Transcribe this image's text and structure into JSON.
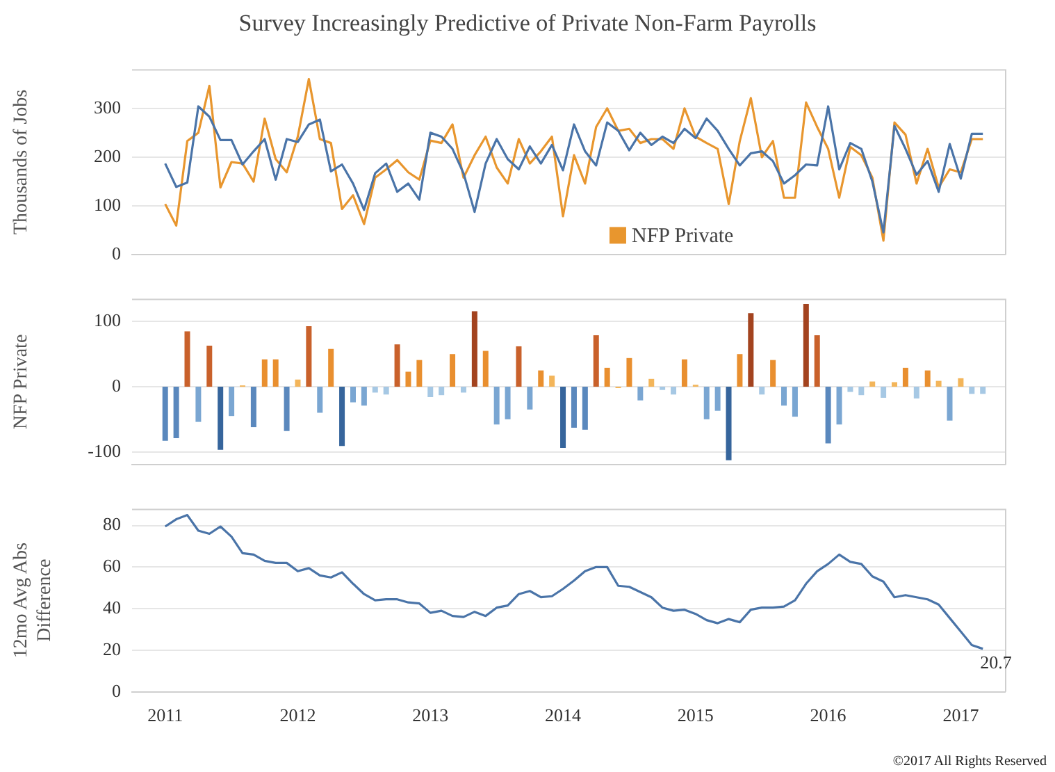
{
  "chart_data": [
    {
      "type": "line",
      "title": "Survey Increasingly Predictive of Private Non-Farm Payrolls",
      "ylabel": "Thousands of Jobs",
      "legend": "bottom",
      "grid": "y",
      "marker": "none",
      "tick_labels": "y",
      "x": [
        "2011-01",
        "2011-02",
        "2011-03",
        "2011-04",
        "2011-05",
        "2011-06",
        "2011-07",
        "2011-08",
        "2011-09",
        "2011-10",
        "2011-11",
        "2011-12",
        "2012-01",
        "2012-02",
        "2012-03",
        "2012-04",
        "2012-05",
        "2012-06",
        "2012-07",
        "2012-08",
        "2012-09",
        "2012-10",
        "2012-11",
        "2012-12",
        "2013-01",
        "2013-02",
        "2013-03",
        "2013-04",
        "2013-05",
        "2013-06",
        "2013-07",
        "2013-08",
        "2013-09",
        "2013-10",
        "2013-11",
        "2013-12",
        "2014-01",
        "2014-02",
        "2014-03",
        "2014-04",
        "2014-05",
        "2014-06",
        "2014-07",
        "2014-08",
        "2014-09",
        "2014-10",
        "2014-11",
        "2014-12",
        "2015-01",
        "2015-02",
        "2015-03",
        "2015-04",
        "2015-05",
        "2015-06",
        "2015-07",
        "2015-08",
        "2015-09",
        "2015-10",
        "2015-11",
        "2015-12",
        "2016-01",
        "2016-02",
        "2016-03",
        "2016-04",
        "2016-05",
        "2016-06",
        "2016-07",
        "2016-08",
        "2016-09",
        "2016-10",
        "2016-11",
        "2016-12",
        "2017-01",
        "2017-02",
        "2017-03"
      ],
      "xlim": [
        "2010-10",
        "2017-05"
      ],
      "xticks": [
        "2011",
        "2012",
        "2013",
        "2014",
        "2015",
        "2016",
        "2017"
      ],
      "ylim": [
        0,
        380
      ],
      "yticks": [
        0,
        100,
        200,
        300
      ],
      "series": [
        {
          "color": "#4a74a8",
          "values": [
            187,
            139,
            148,
            304,
            283,
            235,
            235,
            185,
            212,
            237,
            154,
            237,
            231,
            267,
            277,
            171,
            185,
            146,
            92,
            167,
            187,
            129,
            146,
            113,
            250,
            242,
            217,
            167,
            88,
            187,
            237,
            196,
            175,
            222,
            187,
            225,
            173,
            267,
            212,
            183,
            271,
            254,
            214,
            250,
            225,
            242,
            229,
            258,
            239,
            279,
            254,
            217,
            183,
            208,
            212,
            192,
            146,
            163,
            185,
            183,
            304,
            175,
            229,
            217,
            150,
            46,
            264,
            217,
            164,
            192,
            129,
            227,
            156,
            248,
            248
          ]
        },
        {
          "name": "NFP Private",
          "color": "#e8962e",
          "values": [
            104,
            60,
            233,
            250,
            346,
            138,
            190,
            187,
            150,
            279,
            196,
            169,
            242,
            360,
            237,
            229,
            94,
            122,
            63,
            158,
            175,
            194,
            169,
            154,
            234,
            229,
            267,
            158,
            204,
            242,
            179,
            146,
            237,
            187,
            212,
            242,
            79,
            204,
            146,
            262,
            300,
            254,
            258,
            229,
            237,
            237,
            217,
            300,
            242,
            229,
            217,
            104,
            233,
            321,
            200,
            233,
            117,
            117,
            312,
            262,
            217,
            117,
            221,
            204,
            158,
            29,
            271,
            246,
            146,
            217,
            138,
            175,
            169,
            237,
            237
          ]
        }
      ]
    },
    {
      "type": "bar",
      "ylabel": "NFP Private",
      "grid": "y",
      "tick_labels": "y",
      "x": [
        "2011-01",
        "2011-02",
        "2011-03",
        "2011-04",
        "2011-05",
        "2011-06",
        "2011-07",
        "2011-08",
        "2011-09",
        "2011-10",
        "2011-11",
        "2011-12",
        "2012-01",
        "2012-02",
        "2012-03",
        "2012-04",
        "2012-05",
        "2012-06",
        "2012-07",
        "2012-08",
        "2012-09",
        "2012-10",
        "2012-11",
        "2012-12",
        "2013-01",
        "2013-02",
        "2013-03",
        "2013-04",
        "2013-05",
        "2013-06",
        "2013-07",
        "2013-08",
        "2013-09",
        "2013-10",
        "2013-11",
        "2013-12",
        "2014-01",
        "2014-02",
        "2014-03",
        "2014-04",
        "2014-05",
        "2014-06",
        "2014-07",
        "2014-08",
        "2014-09",
        "2014-10",
        "2014-11",
        "2014-12",
        "2015-01",
        "2015-02",
        "2015-03",
        "2015-04",
        "2015-05",
        "2015-06",
        "2015-07",
        "2015-08",
        "2015-09",
        "2015-10",
        "2015-11",
        "2015-12",
        "2016-01",
        "2016-02",
        "2016-03",
        "2016-04",
        "2016-05",
        "2016-06",
        "2016-07",
        "2016-08",
        "2016-09",
        "2016-10",
        "2016-11",
        "2016-12",
        "2017-01",
        "2017-02",
        "2017-03"
      ],
      "xlim": [
        "2010-10",
        "2017-05"
      ],
      "xticks": [
        "2011",
        "2012",
        "2013",
        "2014",
        "2015",
        "2016",
        "2017"
      ],
      "ylim": [
        -120,
        135
      ],
      "yticks": [
        -100,
        0,
        100
      ],
      "values": [
        -83,
        -79,
        85,
        -54,
        63,
        -97,
        -45,
        2,
        -62,
        42,
        42,
        -68,
        11,
        93,
        -40,
        58,
        -91,
        -24,
        -29,
        -9,
        -12,
        65,
        23,
        41,
        -16,
        -13,
        50,
        -9,
        116,
        55,
        -58,
        -50,
        62,
        -35,
        25,
        17,
        -94,
        -63,
        -66,
        79,
        29,
        0,
        44,
        -21,
        12,
        -5,
        -12,
        42,
        3,
        -50,
        -37,
        -113,
        50,
        113,
        -12,
        41,
        -29,
        -46,
        127,
        79,
        -87,
        -58,
        -8,
        -13,
        8,
        -17,
        7,
        29,
        -18,
        25,
        9,
        -52,
        13,
        -11,
        -11
      ],
      "colors": [
        "#5a88bd",
        "#5a88bd",
        "#c9612b",
        "#7aa6d2",
        "#c9612b",
        "#36659c",
        "#7aa6d2",
        "#f3b55a",
        "#5a88bd",
        "#e98f2f",
        "#e98f2f",
        "#5a88bd",
        "#f3b55a",
        "#c9612b",
        "#7aa6d2",
        "#e98f2f",
        "#36659c",
        "#7aa6d2",
        "#7aa6d2",
        "#a6c8e4",
        "#a6c8e4",
        "#c9612b",
        "#e98f2f",
        "#e98f2f",
        "#a6c8e4",
        "#a6c8e4",
        "#e98f2f",
        "#a6c8e4",
        "#a3431f",
        "#e98f2f",
        "#7aa6d2",
        "#7aa6d2",
        "#c9612b",
        "#7aa6d2",
        "#e98f2f",
        "#f3b55a",
        "#36659c",
        "#5a88bd",
        "#5a88bd",
        "#c9612b",
        "#e98f2f",
        "#f3b55a",
        "#e98f2f",
        "#7aa6d2",
        "#f3b55a",
        "#a6c8e4",
        "#a6c8e4",
        "#e98f2f",
        "#f3b55a",
        "#7aa6d2",
        "#7aa6d2",
        "#36659c",
        "#e98f2f",
        "#a3431f",
        "#a6c8e4",
        "#e98f2f",
        "#7aa6d2",
        "#7aa6d2",
        "#a3431f",
        "#c9612b",
        "#5a88bd",
        "#7aa6d2",
        "#a6c8e4",
        "#a6c8e4",
        "#f3b55a",
        "#a6c8e4",
        "#f3b55a",
        "#e98f2f",
        "#a6c8e4",
        "#e98f2f",
        "#f3b55a",
        "#7aa6d2",
        "#f3b55a",
        "#a6c8e4",
        "#a6c8e4"
      ]
    },
    {
      "type": "line",
      "ylabel": "12mo Avg Abs Difference",
      "grid": "y",
      "marker": "none",
      "x": [
        "2011-01",
        "2011-02",
        "2011-03",
        "2011-04",
        "2011-05",
        "2011-06",
        "2011-07",
        "2011-08",
        "2011-09",
        "2011-10",
        "2011-11",
        "2011-12",
        "2012-01",
        "2012-02",
        "2012-03",
        "2012-04",
        "2012-05",
        "2012-06",
        "2012-07",
        "2012-08",
        "2012-09",
        "2012-10",
        "2012-11",
        "2012-12",
        "2013-01",
        "2013-02",
        "2013-03",
        "2013-04",
        "2013-05",
        "2013-06",
        "2013-07",
        "2013-08",
        "2013-09",
        "2013-10",
        "2013-11",
        "2013-12",
        "2014-01",
        "2014-02",
        "2014-03",
        "2014-04",
        "2014-05",
        "2014-06",
        "2014-07",
        "2014-08",
        "2014-09",
        "2014-10",
        "2014-11",
        "2014-12",
        "2015-01",
        "2015-02",
        "2015-03",
        "2015-04",
        "2015-05",
        "2015-06",
        "2015-07",
        "2015-08",
        "2015-09",
        "2015-10",
        "2015-11",
        "2015-12",
        "2016-01",
        "2016-02",
        "2016-03",
        "2016-04",
        "2016-05",
        "2016-06",
        "2016-07",
        "2016-08",
        "2016-09",
        "2016-10",
        "2016-11",
        "2016-12",
        "2017-01",
        "2017-02",
        "2017-03"
      ],
      "xlim": [
        "2010-10",
        "2017-05"
      ],
      "xticks": [
        "2011",
        "2012",
        "2013",
        "2014",
        "2015",
        "2016",
        "2017"
      ],
      "ylim": [
        0,
        88
      ],
      "yticks": [
        0,
        20,
        40,
        60,
        80
      ],
      "series": [
        {
          "color": "#4a74a8",
          "values": [
            79.5,
            83,
            85,
            77.5,
            76,
            79.5,
            74.6,
            66.7,
            66,
            63,
            62,
            62,
            58,
            59.5,
            56,
            55,
            57.5,
            52,
            47,
            44,
            44.5,
            44.5,
            43,
            42.5,
            38,
            39,
            36.5,
            36,
            38.5,
            36.5,
            40.5,
            41.5,
            47,
            48.5,
            45.5,
            46,
            49.5,
            53.5,
            58,
            60,
            60,
            51,
            50.5,
            48,
            45.5,
            40.5,
            39,
            39.5,
            37.5,
            34.5,
            33,
            35,
            33.5,
            39.5,
            40.5,
            40.5,
            41,
            44,
            52,
            58,
            61.5,
            66,
            62.5,
            61.5,
            55.5,
            53,
            45.5,
            46.5,
            45.5,
            44.5,
            42,
            35.5,
            29,
            22.5,
            20.7
          ]
        }
      ],
      "annotations": [
        {
          "text": "20.7",
          "x": "2017-03",
          "y": 20.7
        },
        "©2017 All Rights Reserved"
      ]
    }
  ]
}
